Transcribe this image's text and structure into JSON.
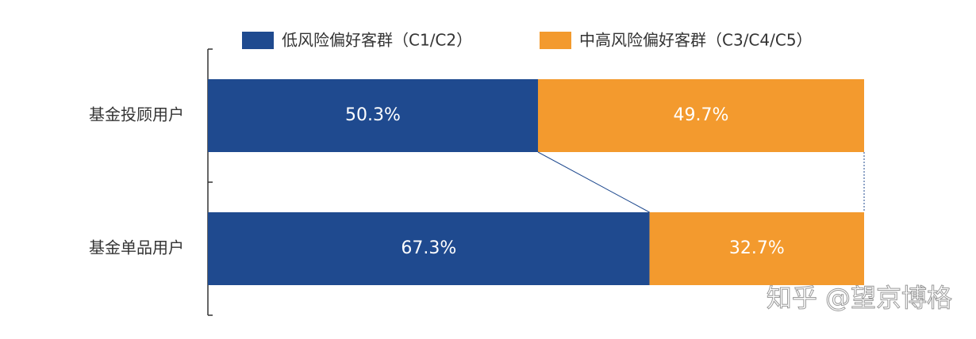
{
  "chart_data": {
    "type": "bar",
    "orientation": "horizontal",
    "stacked": true,
    "categories": [
      "基金投顾用户",
      "基金单品用户"
    ],
    "series": [
      {
        "name": "低风险偏好客群（C1/C2）",
        "color": "#1f4a8f",
        "values": [
          50.3,
          67.3
        ],
        "value_labels": [
          "50.3%",
          "67.3%"
        ]
      },
      {
        "name": "中高风险偏好客群（C3/C4/C5）",
        "color": "#f39a2e",
        "values": [
          49.7,
          32.7
        ],
        "value_labels": [
          "49.7%",
          "32.7%"
        ]
      }
    ],
    "xlim": [
      0,
      100
    ],
    "watermark": "知乎 @望京博格"
  }
}
